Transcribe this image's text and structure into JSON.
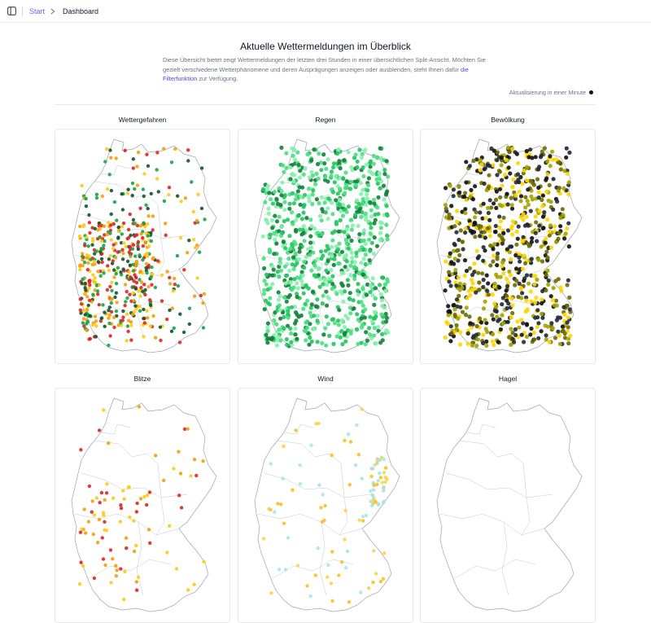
{
  "breadcrumb": {
    "home": "Start",
    "current": "Dashboard"
  },
  "page": {
    "title": "Aktuelle Wettermeldungen im Überblick",
    "description_before_link": "Diese Übersicht bietet zeigt Wettermeldungen der letzten drei Stunden in einer übersichtlichen Split-Ansicht. Möchten Sie gezielt verschiedene Wetterphänomene und deren Ausprägungen anzeigen oder ausblenden, steht Ihnen dafür ",
    "description_link": "die Filterfunktion",
    "description_after_link": " zur Verfügung.",
    "refresh_text": "Aktualisierung in einer Minute"
  },
  "icons": {
    "sidebar_toggle": "sidebar-toggle-icon",
    "breadcrumb_separator": "chevron-right-icon",
    "refresh_status": "status-dot-icon"
  },
  "maps": [
    {
      "title": "Wettergefahren",
      "colors": [
        "#f59e0b",
        "#facc15",
        "#16a34a",
        "#14532d",
        "#dc2626"
      ]
    },
    {
      "title": "Regen",
      "colors": [
        "#86efac",
        "#22c55e",
        "#15803d",
        "#4ade80"
      ]
    },
    {
      "title": "Bewölkung",
      "colors": [
        "#1f2937",
        "#111111",
        "#a3a300",
        "#ffd400",
        "#6b6b00"
      ]
    },
    {
      "title": "Blitze",
      "colors": [
        "#facc15",
        "#f59e0b",
        "#dc2626"
      ]
    },
    {
      "title": "Wind",
      "colors": [
        "#a5e3f0",
        "#fcd34d",
        "#fbbf24"
      ]
    },
    {
      "title": "Hagel",
      "colors": []
    }
  ]
}
